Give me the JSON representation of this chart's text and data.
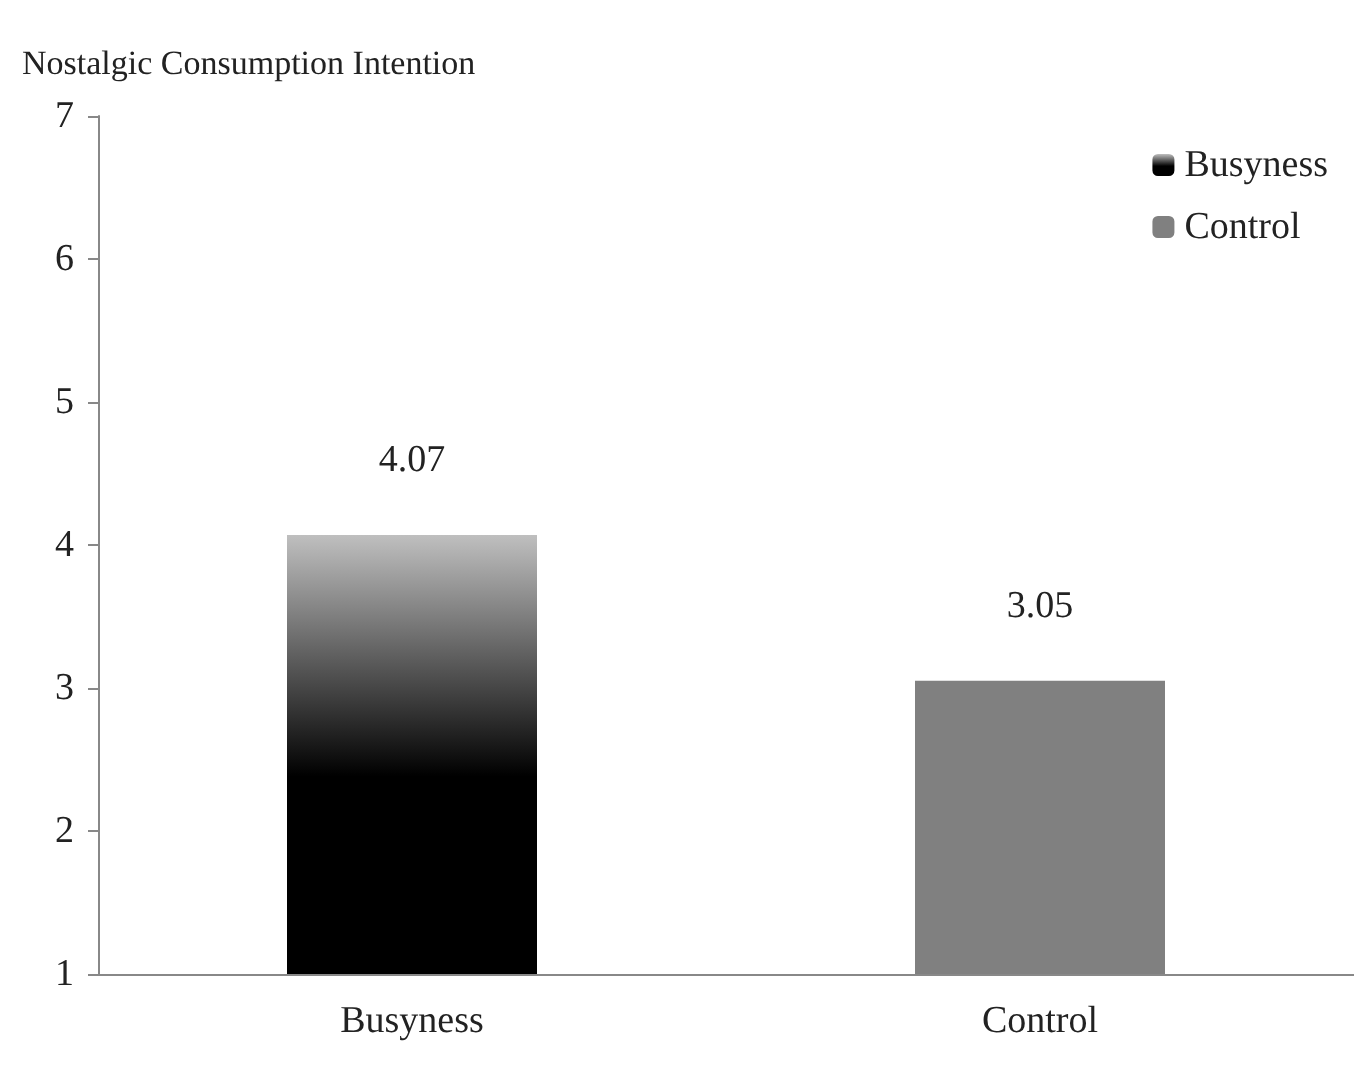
{
  "chart_data": {
    "type": "bar",
    "ylabel": "Nostalgic Consumption Intention",
    "categories": [
      "Busyness",
      "Control"
    ],
    "series": [
      {
        "name": "Busyness",
        "color": "#000000",
        "values": [
          4.07,
          null
        ]
      },
      {
        "name": "Control",
        "color": "#808080",
        "values": [
          null,
          3.05
        ]
      }
    ],
    "ylim": [
      1,
      7
    ],
    "yticks": [
      1,
      2,
      3,
      4,
      5,
      6,
      7
    ],
    "grid": false,
    "legend": "top right",
    "data_labels": true
  }
}
